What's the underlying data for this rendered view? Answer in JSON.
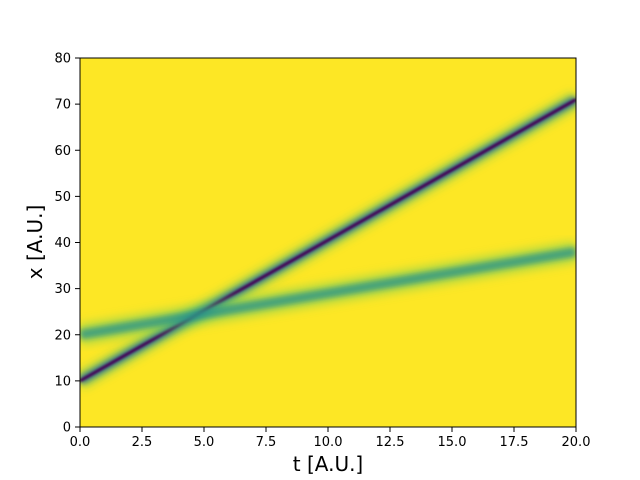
{
  "chart_data": {
    "type": "heatmap",
    "title": "",
    "xlabel": "t [A.U.]",
    "ylabel": "x [A.U.]",
    "xlim": [
      0,
      20
    ],
    "ylim": [
      0,
      80
    ],
    "xticks": [
      "0.0",
      "2.5",
      "5.0",
      "7.5",
      "10.0",
      "12.5",
      "15.0",
      "17.5",
      "20.0"
    ],
    "yticks": [
      "0",
      "10",
      "20",
      "30",
      "40",
      "50",
      "60",
      "70",
      "80"
    ],
    "colormap": "viridis",
    "background_color": "#fde725",
    "grid": false,
    "series": [
      {
        "x0": 10,
        "slope": 3.05,
        "x_end": 71,
        "color": "#31688e",
        "core_color": "#440154"
      },
      {
        "x0": 20,
        "slope": 0.9,
        "x_end": 38,
        "color": "#21918c"
      }
    ]
  }
}
